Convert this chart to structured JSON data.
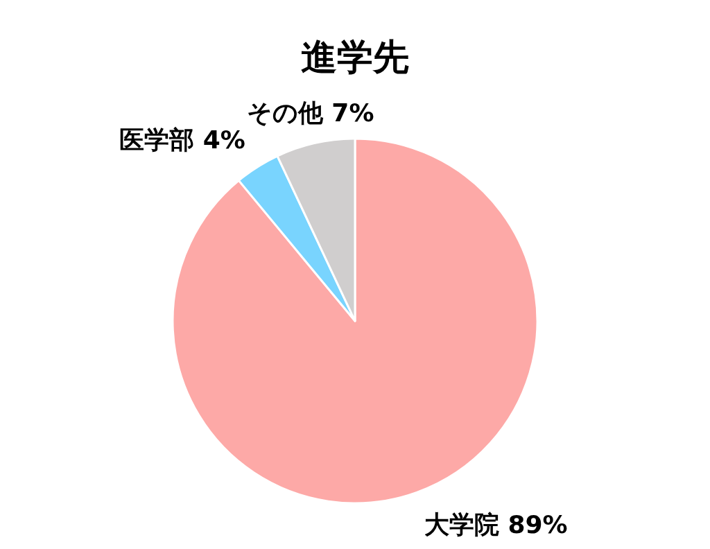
{
  "chart_data": {
    "type": "pie",
    "title": "進学先",
    "categories": [
      "大学院",
      "医学部",
      "その他"
    ],
    "values": [
      89,
      4,
      7
    ],
    "value_labels": [
      "89%",
      "4%",
      "7%"
    ],
    "colors": [
      "#fda9a7",
      "#79d4fe",
      "#d0cece"
    ],
    "legend": false
  }
}
